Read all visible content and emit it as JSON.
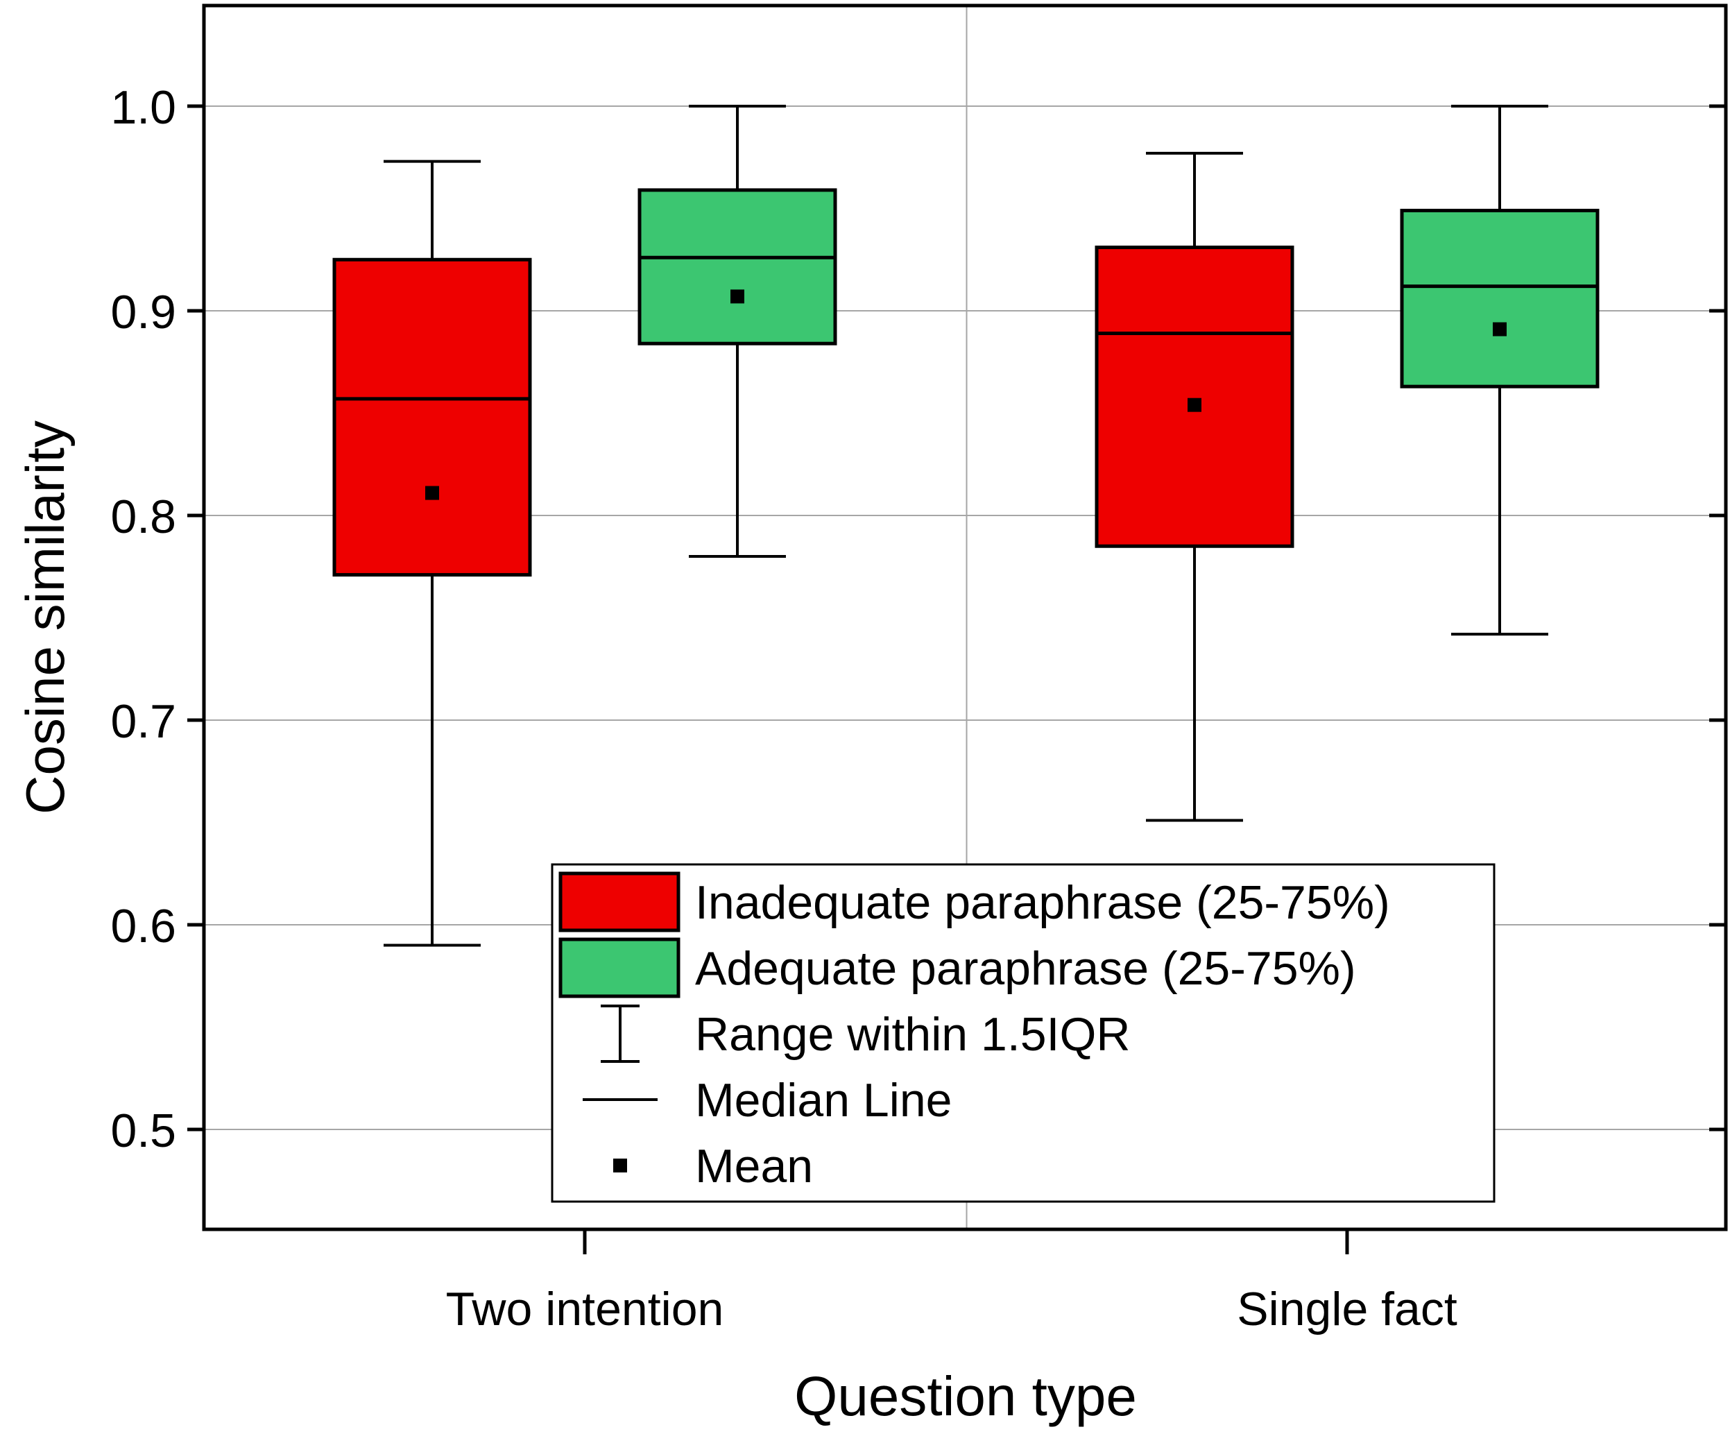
{
  "chart_data": {
    "type": "box",
    "xlabel": "Question type",
    "ylabel": "Cosine similarity",
    "ylim": [
      0.45,
      1.05
    ],
    "yticks": [
      0.5,
      0.6,
      0.7,
      0.8,
      0.9,
      1.0
    ],
    "ytick_labels": [
      "0.5",
      "0.6",
      "0.7",
      "0.8",
      "0.9",
      "1.0"
    ],
    "categories": [
      "Two intention",
      "Single fact"
    ],
    "grid": true,
    "series": [
      {
        "name": "Inadequate paraphrase (25-75%)",
        "color": "#ee0000",
        "boxes": [
          {
            "category": "Two intention",
            "whisker_low": 0.59,
            "q1": 0.771,
            "median": 0.857,
            "q3": 0.925,
            "whisker_high": 0.973,
            "mean": 0.811
          },
          {
            "category": "Single fact",
            "whisker_low": 0.651,
            "q1": 0.785,
            "median": 0.889,
            "q3": 0.931,
            "whisker_high": 0.977,
            "mean": 0.854
          }
        ]
      },
      {
        "name": "Adequate paraphrase (25-75%)",
        "color": "#3cc671",
        "boxes": [
          {
            "category": "Two intention",
            "whisker_low": 0.78,
            "q1": 0.884,
            "median": 0.926,
            "q3": 0.959,
            "whisker_high": 1.0,
            "mean": 0.907
          },
          {
            "category": "Single fact",
            "whisker_low": 0.742,
            "q1": 0.863,
            "median": 0.912,
            "q3": 0.949,
            "whisker_high": 1.0,
            "mean": 0.891
          }
        ]
      }
    ],
    "legend": {
      "placement": "bottom-center",
      "entries": [
        {
          "kind": "swatch",
          "series": 0,
          "label": "Inadequate paraphrase (25-75%)"
        },
        {
          "kind": "swatch",
          "series": 1,
          "label": "Adequate paraphrase (25-75%)"
        },
        {
          "kind": "whisker",
          "label": "Range within 1.5IQR"
        },
        {
          "kind": "median",
          "label": "Median Line"
        },
        {
          "kind": "mean",
          "label": "Mean"
        }
      ]
    }
  }
}
